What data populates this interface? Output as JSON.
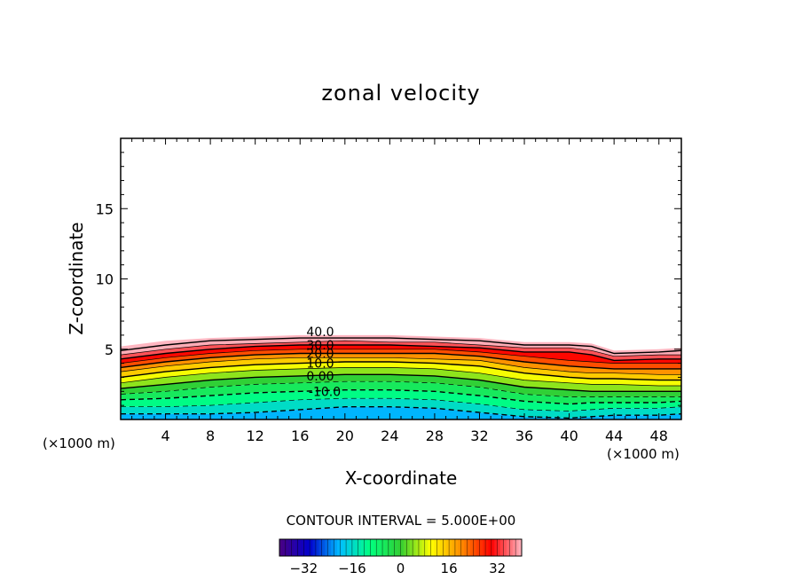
{
  "chart_data": {
    "type": "contour",
    "title": "zonal velocity",
    "xlabel": "X-coordinate",
    "ylabel": "Z-coordinate",
    "x_unit_left": "(×1000 m)",
    "x_unit_right": "(×1000 m)",
    "xlim": [
      0,
      50
    ],
    "ylim": [
      0,
      20
    ],
    "xticks": [
      "4",
      "8",
      "12",
      "16",
      "20",
      "24",
      "28",
      "32",
      "36",
      "40",
      "44",
      "48"
    ],
    "yticks": [
      "5",
      "10",
      "15"
    ],
    "contour_interval_text": "CONTOUR INTERVAL = 5.000E+00",
    "contour_labels": [
      "40.0",
      "30.0",
      "20.0",
      "10.0",
      "0.00",
      "-10.0"
    ],
    "colorbar": {
      "range": [
        -40,
        40
      ],
      "ticks": [
        "-32",
        "-16",
        "0",
        "16",
        "32"
      ],
      "colors": [
        "#4b0082",
        "#0000cd",
        "#00bfff",
        "#00ff7f",
        "#32cd32",
        "#ffff00",
        "#ff8c00",
        "#ff0000",
        "#ffb6c1"
      ]
    },
    "field_top": [
      {
        "x": 0,
        "z": 5.2
      },
      {
        "x": 4,
        "z": 5.6
      },
      {
        "x": 8,
        "z": 5.8
      },
      {
        "x": 12,
        "z": 5.9
      },
      {
        "x": 16,
        "z": 6.0
      },
      {
        "x": 20,
        "z": 6.0
      },
      {
        "x": 24,
        "z": 6.0
      },
      {
        "x": 28,
        "z": 5.9
      },
      {
        "x": 32,
        "z": 5.8
      },
      {
        "x": 36,
        "z": 5.5
      },
      {
        "x": 40,
        "z": 5.5
      },
      {
        "x": 42,
        "z": 5.4
      },
      {
        "x": 44,
        "z": 4.9
      },
      {
        "x": 48,
        "z": 5.0
      },
      {
        "x": 50,
        "z": 5.1
      }
    ],
    "contour_levels": [
      {
        "value": 40,
        "z": [
          4.9,
          5.3,
          5.6,
          5.7,
          5.8,
          5.8,
          5.8,
          5.7,
          5.6,
          5.3,
          5.3,
          5.2,
          4.7,
          4.8,
          4.9
        ]
      },
      {
        "value": 35,
        "z": [
          4.6,
          5.0,
          5.3,
          5.4,
          5.5,
          5.6,
          5.5,
          5.5,
          5.3,
          5.1,
          5.1,
          4.9,
          4.5,
          4.6,
          4.6
        ]
      },
      {
        "value": 30,
        "z": [
          4.3,
          4.7,
          5.0,
          5.2,
          5.3,
          5.3,
          5.3,
          5.2,
          5.1,
          4.8,
          4.8,
          4.6,
          4.2,
          4.3,
          4.3
        ]
      },
      {
        "value": 25,
        "z": [
          4.0,
          4.4,
          4.7,
          4.9,
          5.0,
          5.0,
          5.0,
          5.0,
          4.8,
          4.5,
          4.2,
          4.1,
          4.0,
          4.0,
          4.0
        ]
      },
      {
        "value": 20,
        "z": [
          3.7,
          4.1,
          4.4,
          4.6,
          4.7,
          4.7,
          4.7,
          4.7,
          4.5,
          4.1,
          3.8,
          3.7,
          3.6,
          3.6,
          3.6
        ]
      },
      {
        "value": 15,
        "z": [
          3.4,
          3.8,
          4.1,
          4.3,
          4.4,
          4.4,
          4.4,
          4.3,
          4.2,
          3.7,
          3.4,
          3.3,
          3.3,
          3.2,
          3.2
        ]
      },
      {
        "value": 10,
        "z": [
          3.0,
          3.4,
          3.7,
          3.9,
          4.0,
          4.1,
          4.1,
          4.0,
          3.8,
          3.3,
          3.0,
          2.9,
          2.9,
          2.8,
          2.8
        ]
      },
      {
        "value": 5,
        "z": [
          2.6,
          3.0,
          3.3,
          3.5,
          3.6,
          3.7,
          3.7,
          3.6,
          3.3,
          2.8,
          2.6,
          2.5,
          2.5,
          2.4,
          2.4
        ]
      },
      {
        "value": 0,
        "z": [
          2.2,
          2.5,
          2.8,
          3.0,
          3.1,
          3.2,
          3.2,
          3.1,
          2.8,
          2.3,
          2.1,
          2.0,
          2.0,
          2.0,
          2.0
        ]
      },
      {
        "value": -5,
        "z": [
          1.8,
          2.0,
          2.3,
          2.5,
          2.6,
          2.7,
          2.7,
          2.6,
          2.3,
          1.8,
          1.6,
          1.6,
          1.6,
          1.6,
          1.6
        ]
      },
      {
        "value": -10,
        "z": [
          1.4,
          1.5,
          1.7,
          1.9,
          2.0,
          2.1,
          2.1,
          2.0,
          1.7,
          1.3,
          1.1,
          1.2,
          1.2,
          1.2,
          1.3
        ]
      },
      {
        "value": -15,
        "z": [
          0.9,
          0.9,
          1.0,
          1.2,
          1.4,
          1.5,
          1.5,
          1.4,
          1.1,
          0.7,
          0.6,
          0.7,
          0.8,
          0.8,
          0.9
        ]
      },
      {
        "value": -20,
        "z": [
          0.4,
          0.4,
          0.4,
          0.5,
          0.7,
          0.9,
          0.9,
          0.8,
          0.5,
          0.2,
          0.1,
          0.2,
          0.3,
          0.3,
          0.4
        ]
      }
    ]
  }
}
